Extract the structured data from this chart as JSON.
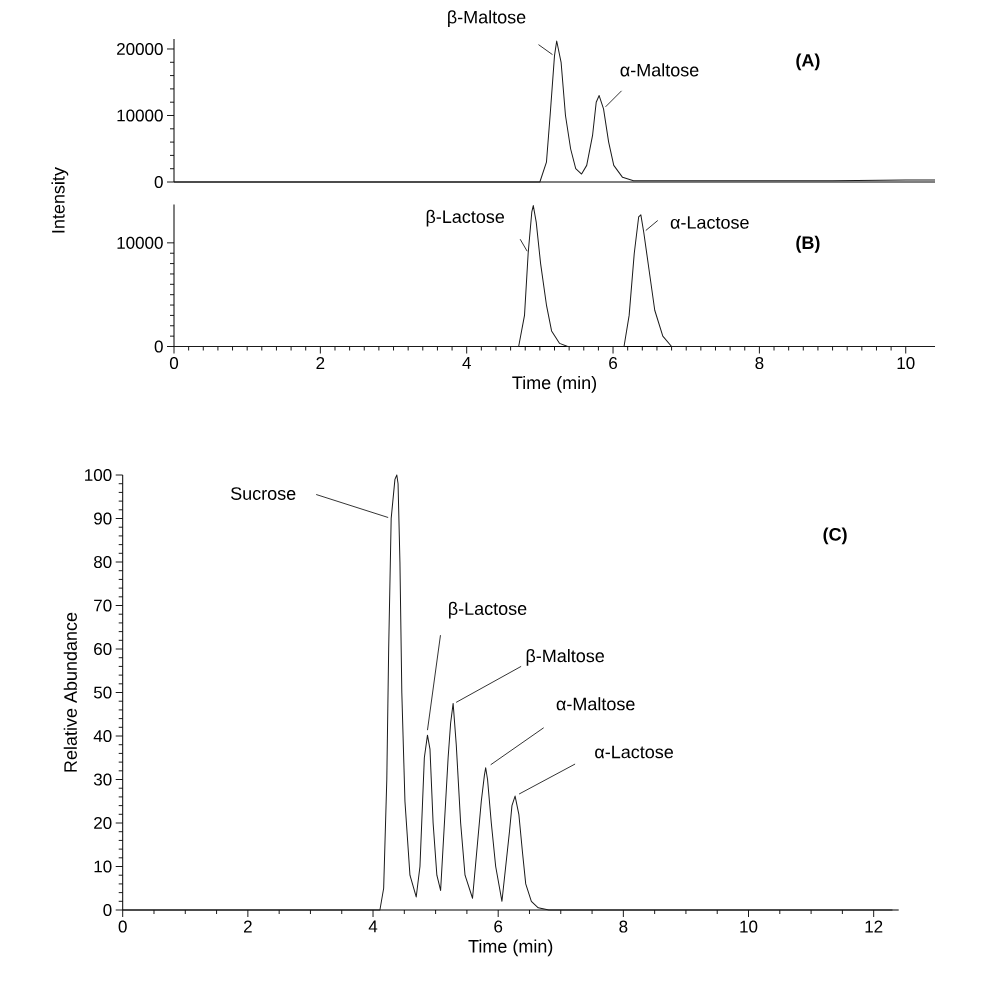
{
  "chart_data": [
    {
      "type": "line",
      "ylabel": "Intensity",
      "xlim": [
        0,
        10.4
      ],
      "ylim": [
        0,
        21500
      ],
      "yticks": [
        0,
        10000,
        20000
      ],
      "tick_labels": "y",
      "color": "#1a1a1a",
      "x": [
        0,
        1,
        2,
        3,
        4,
        4.9,
        5.0,
        5.09,
        5.14,
        5.2,
        5.23,
        5.29,
        5.35,
        5.42,
        5.49,
        5.57,
        5.64,
        5.72,
        5.77,
        5.81,
        5.87,
        5.94,
        6.01,
        6.13,
        6.28,
        7,
        8,
        9,
        10,
        10.4
      ],
      "values": [
        0,
        0,
        0,
        0,
        0,
        0,
        0,
        3000,
        10000,
        19000,
        21200,
        18000,
        10000,
        5000,
        2000,
        1200,
        2500,
        7000,
        12000,
        13000,
        11000,
        6000,
        2500,
        700,
        200,
        200,
        200,
        200,
        300,
        300
      ],
      "annotations": [
        {
          "text": "β-Maltose",
          "x": 5.2,
          "y": 19000
        },
        {
          "text": "α-Maltose",
          "x": 5.87,
          "y": 11000
        },
        "(A)"
      ]
    },
    {
      "type": "line",
      "xlabel": "Time (min)",
      "xlim": [
        0,
        10.4
      ],
      "ylim": [
        0,
        13700
      ],
      "xticks": [
        0,
        2,
        4,
        6,
        8,
        10
      ],
      "yticks": [
        0,
        10000
      ],
      "color": "#1a1a1a",
      "x": [
        0,
        1,
        3,
        4,
        4.71,
        4.79,
        4.84,
        4.89,
        4.91,
        4.95,
        5.01,
        5.09,
        5.16,
        5.27,
        5.38,
        6.15,
        6.22,
        6.29,
        6.35,
        6.38,
        6.42,
        6.5,
        6.57,
        6.68,
        6.8,
        8,
        10,
        10.4
      ],
      "values": [
        0,
        0,
        0,
        0,
        0,
        3000,
        9000,
        13000,
        13600,
        12000,
        8000,
        4000,
        1500,
        300,
        0,
        0,
        3000,
        9000,
        12500,
        12700,
        11000,
        7000,
        3500,
        1000,
        0,
        0,
        0,
        0
      ],
      "annotations": [
        {
          "text": "β-Lactose",
          "x": 4.84,
          "y": 9000
        },
        {
          "text": "α-Lactose",
          "x": 6.42,
          "y": 11000
        },
        "(B)"
      ]
    },
    {
      "type": "line",
      "xlabel": "Time (min)",
      "ylabel": "Relative Abundance",
      "xlim": [
        0,
        12.4
      ],
      "ylim": [
        0,
        100
      ],
      "xticks": [
        0,
        2,
        4,
        6,
        8,
        10,
        12
      ],
      "yticks": [
        0,
        10,
        20,
        30,
        40,
        50,
        60,
        70,
        80,
        90,
        100
      ],
      "color": "#1a1a1a",
      "x": [
        0,
        2,
        4,
        4.11,
        4.17,
        4.22,
        4.25,
        4.29,
        4.35,
        4.38,
        4.4,
        4.43,
        4.46,
        4.51,
        4.59,
        4.69,
        4.75,
        4.82,
        4.87,
        4.91,
        4.96,
        5.02,
        5.08,
        5.2,
        5.24,
        5.28,
        5.33,
        5.4,
        5.47,
        5.59,
        5.73,
        5.78,
        5.8,
        5.83,
        5.89,
        5.96,
        6.06,
        6.18,
        6.22,
        6.27,
        6.33,
        6.39,
        6.44,
        6.53,
        6.64,
        6.81,
        8,
        10,
        12.3
      ],
      "values": [
        0,
        0,
        0,
        0,
        5,
        30,
        60,
        90,
        99,
        100,
        98,
        80,
        50,
        25,
        8,
        3,
        10,
        35,
        40.2,
        37,
        20,
        8,
        4.5,
        35,
        43,
        47.5,
        38,
        20,
        8,
        2.7,
        25,
        31,
        32.7,
        30,
        20,
        10,
        2,
        18,
        24,
        26.2,
        22,
        13,
        6,
        2,
        0.5,
        0,
        0,
        0,
        0
      ],
      "annotations": [
        {
          "text": "Sucrose",
          "x": 4.29,
          "y": 90
        },
        {
          "text": "β-Lactose",
          "x": 4.87,
          "y": 40.2
        },
        {
          "text": "β-Maltose",
          "x": 5.28,
          "y": 47.5
        },
        {
          "text": "α-Maltose",
          "x": 5.8,
          "y": 32.7
        },
        {
          "text": "α-Lactose",
          "x": 6.27,
          "y": 26.2
        },
        "(C)"
      ]
    }
  ]
}
